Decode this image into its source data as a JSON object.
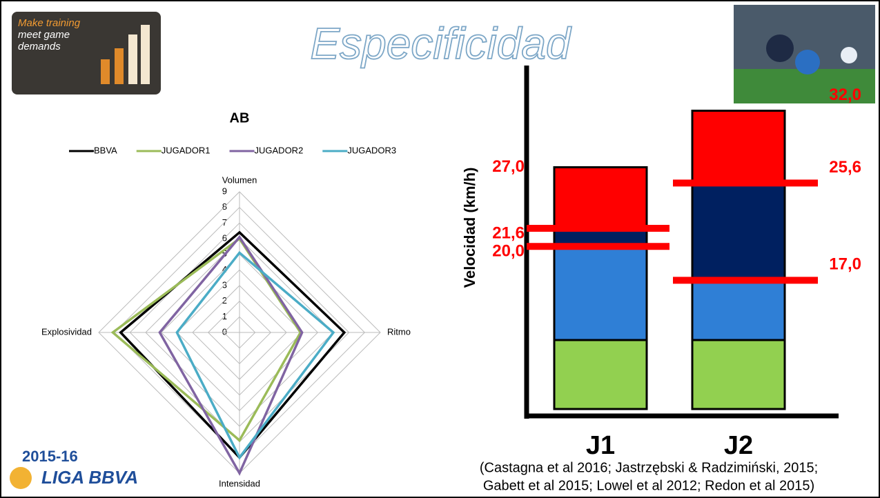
{
  "logo": {
    "text": [
      "Make training",
      "meet game",
      "demands"
    ]
  },
  "header": {
    "title": "Especificidad"
  },
  "season": "2015-16",
  "league": "LIGA BBVA",
  "citation": [
    "(Castagna et al 2016; Jastrzębski  & Radzimiński, 2015;",
    "Gabett et al 2015; Lowel et al 2012; Redon et al 2015)"
  ],
  "chart_data": [
    {
      "type": "radar",
      "title": "AB",
      "categories": [
        "Volumen",
        "Ritmo",
        "Intensidad",
        "Explosividad"
      ],
      "ylim": [
        0,
        9
      ],
      "yticks": [
        0,
        1,
        2,
        3,
        4,
        5,
        6,
        7,
        8,
        9
      ],
      "grid": true,
      "legend": "top",
      "series": [
        {
          "name": "BBVA",
          "color": "#000000",
          "values": [
            6.4,
            6.7,
            8.0,
            7.6
          ]
        },
        {
          "name": "JUGADOR1",
          "color": "#9bbb59",
          "values": [
            6.0,
            3.9,
            6.9,
            8.1
          ]
        },
        {
          "name": "JUGADOR2",
          "color": "#8064a2",
          "values": [
            6.1,
            4.0,
            9.0,
            5.1
          ]
        },
        {
          "name": "JUGADOR3",
          "color": "#4bacc6",
          "values": [
            5.1,
            6.0,
            8.0,
            4.0
          ]
        }
      ]
    },
    {
      "type": "zones",
      "y_label": "Velocidad (km/h)",
      "categories": [
        "J1",
        "J2"
      ],
      "ylim": [
        5,
        36
      ],
      "colors": [
        "#92d050",
        "#2f7fd6",
        "#002060",
        "#ff0000"
      ],
      "line_color": "#ff0000",
      "values": [
        [
          20.0,
          21.6,
          27.0
        ],
        [
          17.0,
          25.6,
          32.0
        ]
      ],
      "value_labels": [
        [
          "20,0",
          "21,6",
          "27,0"
        ],
        [
          "17,0",
          "25,6",
          "32,0"
        ]
      ]
    }
  ]
}
